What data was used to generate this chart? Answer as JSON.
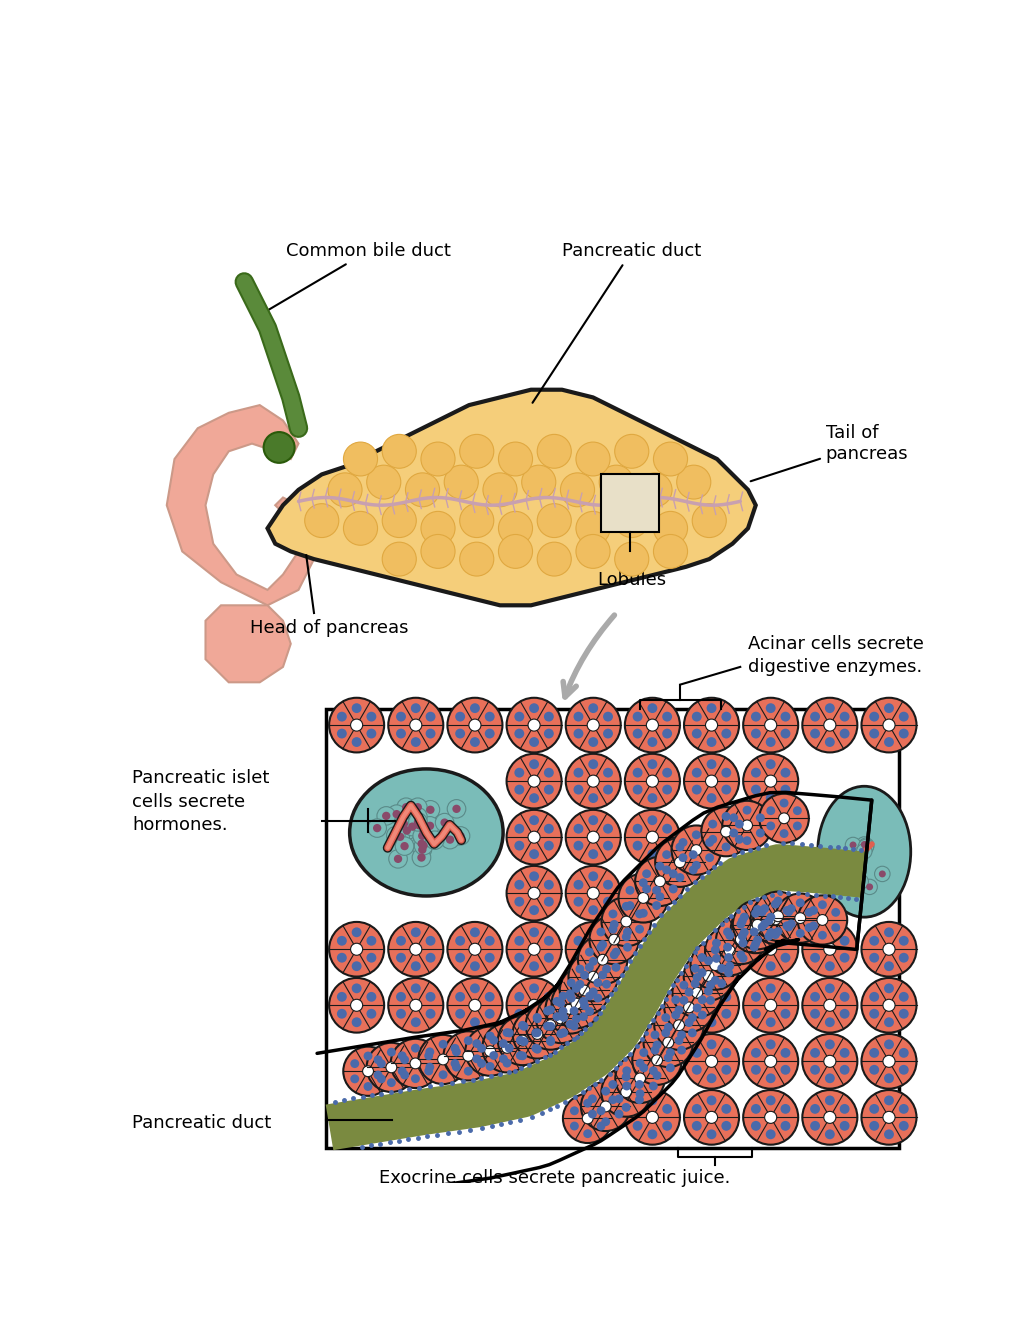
{
  "background_color": "#ffffff",
  "labels": {
    "common_bile_duct": "Common bile duct",
    "pancreatic_duct_top": "Pancreatic duct",
    "tail_of_pancreas": "Tail of\npancreas",
    "lobules": "Lobules",
    "head_of_pancreas": "Head of pancreas",
    "acinar_cells": "Acinar cells secrete\ndigestive enzymes.",
    "pancreatic_islet": "Pancreatic islet\ncells secrete\nhormones.",
    "pancreatic_duct_bottom": "Pancreatic duct",
    "exocrine_cells": "Exocrine cells secrete pancreatic juice."
  },
  "colors": {
    "background_color": "#ffffff",
    "pancreas_fill": "#F5CE7A",
    "pancreas_outline": "#1a1a1a",
    "duodenum_fill": "#F0A898",
    "bile_duct_fill": "#5a8a3a",
    "bile_duct_outline": "#3a6a1a",
    "duct_line": "#c8a0b0",
    "acinar_cell_fill": "#E8705A",
    "acinar_cell_outline": "#1a1a1a",
    "acinar_nucleus": "#4a6aaa",
    "islet_fill": "#7abcb8",
    "islet_outline": "#1a1a1a",
    "islet_nucleus": "#8a4a6a",
    "pancreatic_duct_fill": "#7a8a40",
    "pancreatic_duct_outline": "#1a1a1a",
    "duct_border_dots": "#4a6aaa",
    "arrow_color": "#aaaaaa"
  }
}
